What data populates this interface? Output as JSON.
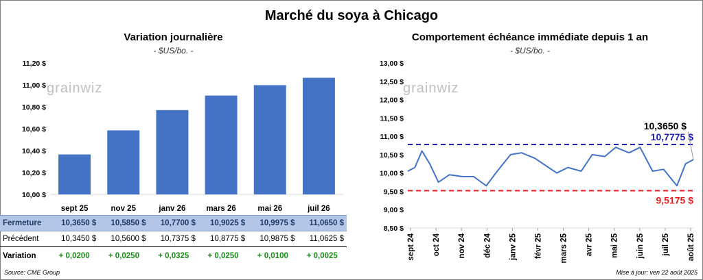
{
  "title": "Marché du soya à Chicago",
  "watermark": "grainwiz",
  "left_panel": {
    "title": "Variation journalière",
    "subtitle": "- $US/bo. -"
  },
  "right_panel": {
    "title": "Comportement échéance immédiate depuis 1 an",
    "subtitle": "- $US/bo. -"
  },
  "table": {
    "rows": [
      {
        "label": "Fermeture",
        "values": [
          "10,3650 $",
          "10,5850 $",
          "10,7700 $",
          "10,9025 $",
          "10,9975 $",
          "11,0650 $"
        ]
      },
      {
        "label": "Précédent",
        "values": [
          "10,3450 $",
          "10,5600 $",
          "10,7375 $",
          "10,8775 $",
          "10,9875 $",
          "11,0625 $"
        ]
      },
      {
        "label": "Variation",
        "values": [
          "+ 0,0200",
          "+ 0,0250",
          "+ 0,0325",
          "+ 0,0250",
          "+ 0,0100",
          "+ 0,0025"
        ]
      }
    ]
  },
  "source": "Source: CME Group",
  "update": "Mise à jour: ven 22 août 2025",
  "colors": {
    "bar": "#4472c4",
    "line": "#4472c4",
    "high": "#1f1fa8",
    "low": "#e02020",
    "table_band": "#b4c6e7",
    "positive": "#1a8a1a"
  },
  "chart_data": [
    {
      "type": "bar",
      "title": "Variation journalière",
      "subtitle": "- $US/bo. -",
      "categories": [
        "sept 25",
        "nov 25",
        "janv 26",
        "mars 26",
        "mai 26",
        "juil 26"
      ],
      "values": [
        10.365,
        10.585,
        10.77,
        10.9025,
        10.9975,
        11.065
      ],
      "ylim": [
        10.0,
        11.2
      ],
      "yticks": [
        10.0,
        10.2,
        10.4,
        10.6,
        10.8,
        11.0,
        11.2
      ],
      "ytick_labels": [
        "10,00 $",
        "10,20 $",
        "10,40 $",
        "10,60 $",
        "10,80 $",
        "11,00 $",
        "11,20 $"
      ],
      "grid": false
    },
    {
      "type": "line",
      "title": "Comportement échéance immédiate depuis 1 an",
      "subtitle": "- $US/bo. -",
      "ylim": [
        8.5,
        13.0
      ],
      "yticks": [
        8.5,
        9.0,
        9.5,
        10.0,
        10.5,
        11.0,
        11.5,
        12.0,
        12.5,
        13.0
      ],
      "ytick_labels": [
        "8,50 $",
        "9,00 $",
        "9,50 $",
        "10,00 $",
        "10,50 $",
        "11,00 $",
        "11,50 $",
        "12,00 $",
        "12,50 $",
        "13,00 $"
      ],
      "xtick_labels": [
        "sept 24",
        "oct 24",
        "nov 24",
        "déc 24",
        "janv 25",
        "févr 25",
        "mars 25",
        "avr 25",
        "mai 25",
        "juin 25",
        "juil 25",
        "août 25"
      ],
      "x": [
        "2024-08-23",
        "2024-09-01",
        "2024-09-10",
        "2024-09-20",
        "2024-10-01",
        "2024-10-15",
        "2024-11-01",
        "2024-11-15",
        "2024-12-01",
        "2024-12-15",
        "2025-01-01",
        "2025-01-15",
        "2025-02-01",
        "2025-02-15",
        "2025-03-01",
        "2025-03-15",
        "2025-04-01",
        "2025-04-15",
        "2025-05-01",
        "2025-05-15",
        "2025-06-01",
        "2025-06-15",
        "2025-07-01",
        "2025-07-15",
        "2025-08-01",
        "2025-08-12",
        "2025-08-22"
      ],
      "values": [
        10.05,
        10.15,
        10.6,
        10.25,
        9.75,
        9.95,
        9.9,
        9.9,
        9.65,
        10.05,
        10.5,
        10.55,
        10.4,
        10.2,
        10.0,
        10.15,
        10.05,
        10.5,
        10.45,
        10.7,
        10.55,
        10.7,
        10.05,
        10.1,
        9.65,
        10.25,
        10.365
      ],
      "hlines": [
        {
          "value": 10.7775,
          "label": "10,7775 $",
          "style": "dashed",
          "color": "#1f1fa8"
        },
        {
          "value": 9.5175,
          "label": "9,5175 $",
          "style": "dashed",
          "color": "#e02020"
        }
      ],
      "last_value_label": "10,3650 $",
      "grid": false
    }
  ]
}
